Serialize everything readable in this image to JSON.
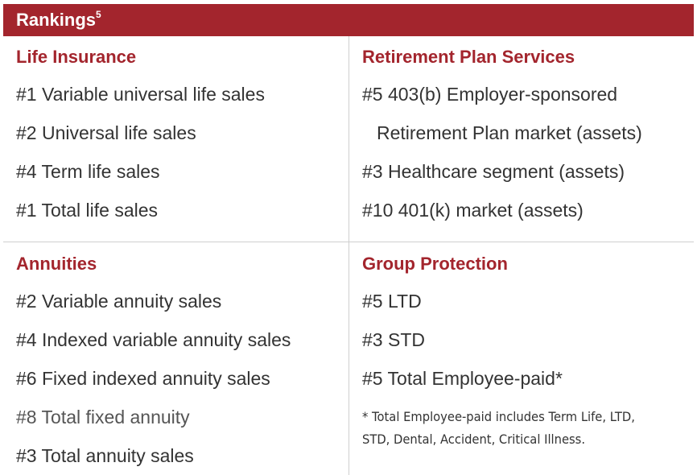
{
  "header": {
    "title": "Rankings",
    "superscript": "5"
  },
  "sections": {
    "life": {
      "title": "Life Insurance",
      "items": [
        "#1 Variable universal life sales",
        "#2 Universal life sales",
        "#4 Term life sales",
        "#1 Total life sales"
      ]
    },
    "retirement": {
      "title": "Retirement Plan Services",
      "items": [
        "#5 403(b) Employer-sponsored",
        "Retirement Plan market (assets)",
        "#3 Healthcare segment (assets)",
        "#10 401(k) market (assets)"
      ]
    },
    "annuities": {
      "title": "Annuities",
      "items": [
        "#2 Variable annuity sales",
        "#4 Indexed variable annuity sales",
        "#6 Fixed indexed annuity sales",
        "#8 Total fixed annuity",
        "#3 Total annuity sales"
      ]
    },
    "group": {
      "title": "Group Protection",
      "items": [
        "#5 LTD",
        "#3 STD",
        "#5 Total Employee-paid*"
      ],
      "footnote_line1": "* Total Employee-paid includes Term Life, LTD,",
      "footnote_line2": "STD, Dental, Accident, Critical Illness."
    }
  },
  "colors": {
    "accent": "#a3252d",
    "text": "#333333",
    "divider": "#cfcfcf"
  }
}
